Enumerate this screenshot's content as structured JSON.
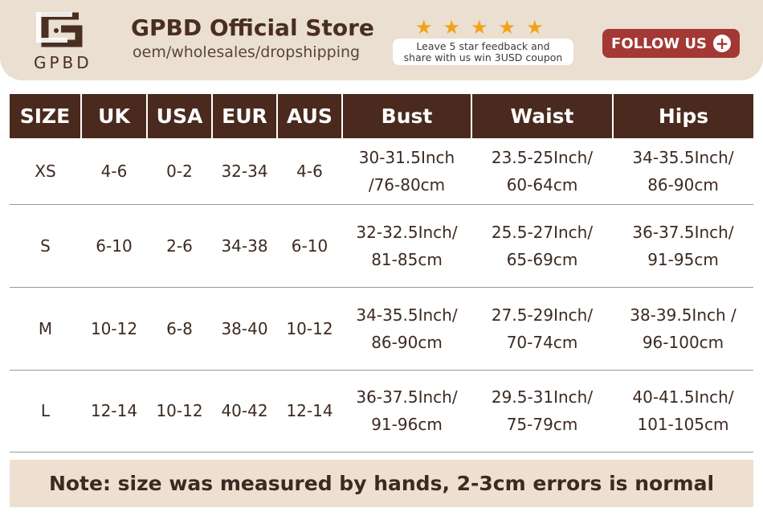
{
  "header": {
    "logo_text": "GPBD",
    "store_name": "GPBD Official Store",
    "tagline": "oem/wholesales/dropshipping",
    "rating_stars": 5,
    "feedback_line1": "Leave 5 star feedback and",
    "feedback_line2": "share with us win 3USD coupon",
    "follow_label": "FOLLOW US",
    "colors": {
      "header_bg": "#eadfd0",
      "follow_bg": "#a33834",
      "table_header": "#4a2a1e",
      "star": "#f2a21a"
    }
  },
  "table": {
    "columns": [
      "SIZE",
      "UK",
      "USA",
      "EUR",
      "AUS",
      "Bust",
      "Waist",
      "Hips"
    ],
    "rows": [
      [
        "XS",
        "4-6",
        "0-2",
        "32-34",
        "4-6",
        [
          "30-31.5Inch",
          "/76-80cm"
        ],
        [
          "23.5-25Inch/",
          "60-64cm"
        ],
        [
          "34-35.5Inch/",
          "86-90cm"
        ]
      ],
      [
        "S",
        "6-10",
        "2-6",
        "34-38",
        "6-10",
        [
          "32-32.5Inch/",
          "81-85cm"
        ],
        [
          "25.5-27Inch/",
          "65-69cm"
        ],
        [
          "36-37.5Inch/",
          "91-95cm"
        ]
      ],
      [
        "M",
        "10-12",
        "6-8",
        "38-40",
        "10-12",
        [
          "34-35.5Inch/",
          "86-90cm"
        ],
        [
          "27.5-29Inch/",
          "70-74cm"
        ],
        [
          "38-39.5Inch /",
          "96-100cm"
        ]
      ],
      [
        "L",
        "12-14",
        "10-12",
        "40-42",
        "12-14",
        [
          "36-37.5Inch/",
          "91-96cm"
        ],
        [
          "29.5-31Inch/",
          "75-79cm"
        ],
        [
          "40-41.5Inch/",
          "101-105cm"
        ]
      ]
    ]
  },
  "note": "Note: size was measured by hands, 2-3cm errors is normal"
}
